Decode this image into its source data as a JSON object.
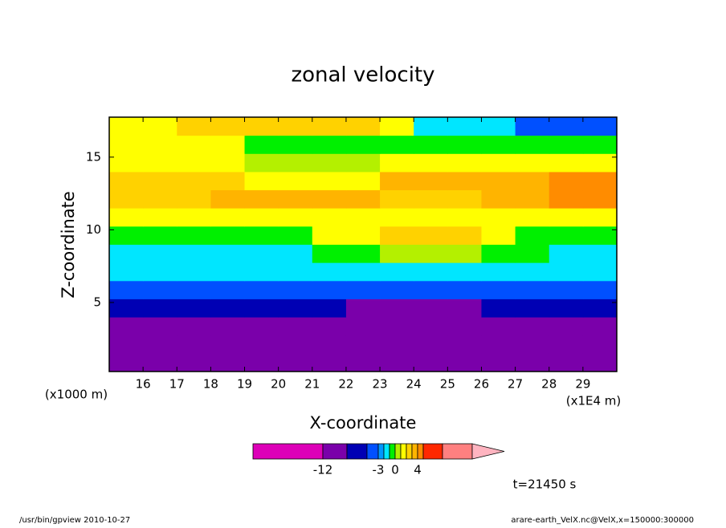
{
  "chart_data": {
    "type": "contour",
    "title": "zonal velocity",
    "x_label": "X-coordinate",
    "y_label": "Z-coordinate",
    "x_unit": "(x1E4 m)",
    "y_unit": "(x1000 m)",
    "time_label": "t=21450 s",
    "footer_left": "/usr/bin/gpview  2010-10-27",
    "footer_right": "arare-earth_VelX.nc@VelX,x=150000:300000",
    "xlim": [
      15,
      30
    ],
    "ylim": [
      0.25,
      17.75
    ],
    "xticks": [
      16,
      17,
      18,
      19,
      20,
      21,
      22,
      23,
      24,
      25,
      26,
      27,
      28,
      29
    ],
    "yticks": [
      5,
      10,
      15
    ],
    "x": [
      15.5,
      16.5,
      17.5,
      18.5,
      19.5,
      20.5,
      21.5,
      22.5,
      23.5,
      24.5,
      25.5,
      26.5,
      27.5,
      28.5,
      29.5
    ],
    "y": [
      0.875,
      2.125,
      3.375,
      4.625,
      5.875,
      7.125,
      8.375,
      9.625,
      10.875,
      12.125,
      13.375,
      14.625,
      15.875,
      17.125
    ],
    "z": [
      [
        -10,
        -10,
        -10,
        -10,
        -10,
        -10,
        -10,
        -10,
        -10,
        -10,
        -10,
        -10,
        -10,
        -10,
        -10
      ],
      [
        -10,
        -10,
        -10,
        -10,
        -10,
        -10,
        -10,
        -10,
        -10,
        -10,
        -10,
        -10,
        -10,
        -10,
        -10
      ],
      [
        -10,
        -10,
        -10,
        -10,
        -10,
        -10,
        -10,
        -10,
        -10,
        -10,
        -10,
        -10,
        -10,
        -10,
        -10
      ],
      [
        -7,
        -7,
        -7,
        -7,
        -7,
        -7,
        -7,
        -10,
        -10,
        -10,
        -10,
        -7,
        -7,
        -7,
        -7
      ],
      [
        -4,
        -4,
        -4,
        -4,
        -4,
        -4,
        -4,
        -4,
        -4,
        -4,
        -4,
        -4,
        -4,
        -4,
        -4
      ],
      [
        -1.5,
        -1.5,
        -1.5,
        -1.5,
        -1.5,
        -1.5,
        -1.5,
        -1.5,
        -1.5,
        -1.5,
        -1.5,
        -1.5,
        -1.5,
        -1.5,
        -1.5
      ],
      [
        -1.5,
        -1.5,
        -1.5,
        -1.5,
        -1.5,
        -1.5,
        -0.5,
        -0.5,
        0.5,
        0.5,
        0.5,
        -0.5,
        -0.5,
        -1.5,
        -1.5
      ],
      [
        -0.5,
        -0.5,
        -0.5,
        -0.5,
        -0.5,
        -0.5,
        1.5,
        1.5,
        2.5,
        2.5,
        2.5,
        1.5,
        -0.5,
        -0.5,
        -0.5
      ],
      [
        1.5,
        1.5,
        1.5,
        1.5,
        1.5,
        1.5,
        1.5,
        1.5,
        1.5,
        1.5,
        1.5,
        1.5,
        1.5,
        1.5,
        1.5
      ],
      [
        2.5,
        2.5,
        2.5,
        3.5,
        3.5,
        3.5,
        3.5,
        3.5,
        2.5,
        2.5,
        2.5,
        3.5,
        3.5,
        4.5,
        4.5
      ],
      [
        2.5,
        2.5,
        2.5,
        2.5,
        1.5,
        1.5,
        1.5,
        1.5,
        3.5,
        3.5,
        3.5,
        3.5,
        3.5,
        4.5,
        4.5
      ],
      [
        1.5,
        1.5,
        1.5,
        1.5,
        0.5,
        0.5,
        0.5,
        0.5,
        1.5,
        1.5,
        1.5,
        1.5,
        1.5,
        1.5,
        1.5
      ],
      [
        1.5,
        1.5,
        1.5,
        1.5,
        -0.5,
        -0.5,
        -0.5,
        -0.5,
        -0.5,
        -0.5,
        -0.5,
        -0.5,
        -0.5,
        -0.5,
        -0.5
      ],
      [
        1.5,
        1.5,
        2.5,
        2.5,
        2.5,
        2.5,
        2.5,
        2.5,
        1.5,
        -1.5,
        -1.5,
        -1.5,
        -4,
        -4,
        -4
      ]
    ],
    "levels": [
      -12,
      -9,
      -6,
      -3,
      -2,
      -1,
      0,
      1,
      2,
      3,
      4,
      5,
      8,
      12
    ],
    "colors": [
      "#dd00b8",
      "#7a00aa",
      "#0000b4",
      "#0050ff",
      "#0096ff",
      "#00e6ff",
      "#00f000",
      "#b4f000",
      "#ffff00",
      "#ffd200",
      "#ffb400",
      "#ff8c00",
      "#ff2800",
      "#ff8080",
      "#ffb4c0"
    ],
    "colorbar_ticks": [
      -12,
      -3,
      0,
      4
    ]
  }
}
